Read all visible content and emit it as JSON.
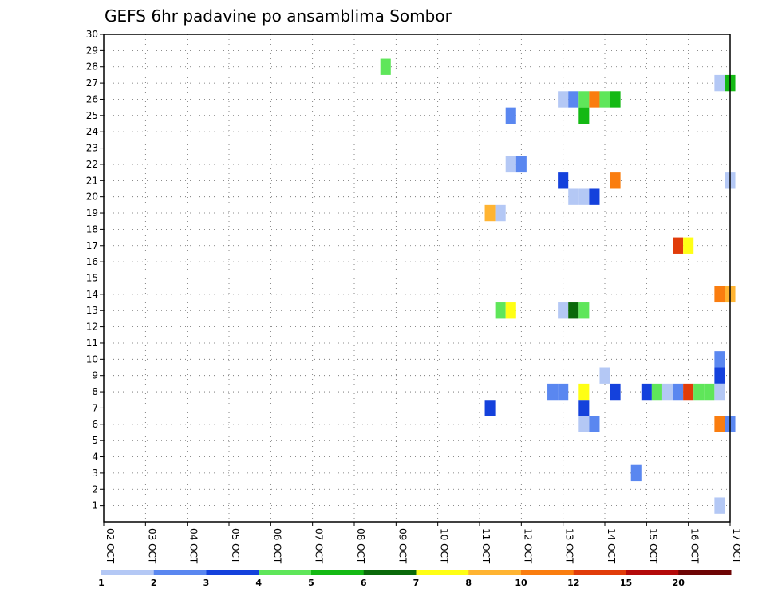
{
  "chart_data": {
    "type": "heatmap",
    "title": "GEFS 6hr padavine po ansamblima Sombor",
    "xlabel": "",
    "ylabel": "",
    "x_ticks": [
      "02 OCT",
      "03 OCT",
      "04 OCT",
      "05 OCT",
      "06 OCT",
      "07 OCT",
      "08 OCT",
      "09 OCT",
      "10 OCT",
      "11 OCT",
      "12 OCT",
      "13 OCT",
      "14 OCT",
      "15 OCT",
      "16 OCT",
      "17 OCT"
    ],
    "xlim": [
      "02 OCT 00Z",
      "17 OCT 00Z"
    ],
    "y_ticks": [
      1,
      2,
      3,
      4,
      5,
      6,
      7,
      8,
      9,
      10,
      11,
      12,
      13,
      14,
      15,
      16,
      17,
      18,
      19,
      20,
      21,
      22,
      23,
      24,
      25,
      26,
      27,
      28,
      29,
      30
    ],
    "ylim": [
      0,
      30
    ],
    "grid": true,
    "colorbar": {
      "labels": [
        "1",
        "2",
        "3",
        "4",
        "5",
        "6",
        "7",
        "8",
        "10",
        "12",
        "15",
        "20"
      ],
      "colors": [
        "#b4c8f5",
        "#5a87f0",
        "#1441dc",
        "#5fe65a",
        "#14b914",
        "#0a690a",
        "#ffff14",
        "#ffb432",
        "#fa7d0f",
        "#e13c0a",
        "#b40a0a",
        "#6e0505"
      ]
    },
    "cells": [
      {
        "time": "08 OCT 18Z",
        "member": 28,
        "color": "#5fe65a"
      },
      {
        "time": "16 OCT 18Z",
        "member": 27,
        "color": "#b4c8f5"
      },
      {
        "time": "17 OCT 00Z",
        "member": 27,
        "color": "#14b914"
      },
      {
        "time": "13 OCT 00Z",
        "member": 26,
        "color": "#b4c8f5"
      },
      {
        "time": "13 OCT 06Z",
        "member": 26,
        "color": "#5a87f0"
      },
      {
        "time": "13 OCT 12Z",
        "member": 26,
        "color": "#5fe65a"
      },
      {
        "time": "13 OCT 18Z",
        "member": 26,
        "color": "#fa7d0f"
      },
      {
        "time": "14 OCT 00Z",
        "member": 26,
        "color": "#5fe65a"
      },
      {
        "time": "14 OCT 06Z",
        "member": 26,
        "color": "#14b914"
      },
      {
        "time": "11 OCT 18Z",
        "member": 25,
        "color": "#5a87f0"
      },
      {
        "time": "13 OCT 12Z",
        "member": 25,
        "color": "#14b914"
      },
      {
        "time": "11 OCT 18Z",
        "member": 22,
        "color": "#b4c8f5"
      },
      {
        "time": "12 OCT 00Z",
        "member": 22,
        "color": "#5a87f0"
      },
      {
        "time": "13 OCT 00Z",
        "member": 21,
        "color": "#1441dc"
      },
      {
        "time": "14 OCT 06Z",
        "member": 21,
        "color": "#fa7d0f"
      },
      {
        "time": "17 OCT 00Z",
        "member": 21,
        "color": "#b4c8f5"
      },
      {
        "time": "13 OCT 06Z",
        "member": 20,
        "color": "#b4c8f5"
      },
      {
        "time": "13 OCT 12Z",
        "member": 20,
        "color": "#b4c8f5"
      },
      {
        "time": "13 OCT 18Z",
        "member": 20,
        "color": "#1441dc"
      },
      {
        "time": "11 OCT 06Z",
        "member": 19,
        "color": "#ffb432"
      },
      {
        "time": "11 OCT 12Z",
        "member": 19,
        "color": "#b4c8f5"
      },
      {
        "time": "15 OCT 18Z",
        "member": 17,
        "color": "#e13c0a"
      },
      {
        "time": "16 OCT 00Z",
        "member": 17,
        "color": "#ffff14"
      },
      {
        "time": "16 OCT 18Z",
        "member": 14,
        "color": "#fa7d0f"
      },
      {
        "time": "17 OCT 00Z",
        "member": 14,
        "color": "#ffb432"
      },
      {
        "time": "11 OCT 12Z",
        "member": 13,
        "color": "#5fe65a"
      },
      {
        "time": "11 OCT 18Z",
        "member": 13,
        "color": "#ffff14"
      },
      {
        "time": "13 OCT 00Z",
        "member": 13,
        "color": "#b4c8f5"
      },
      {
        "time": "13 OCT 06Z",
        "member": 13,
        "color": "#0a690a"
      },
      {
        "time": "13 OCT 12Z",
        "member": 13,
        "color": "#5fe65a"
      },
      {
        "time": "16 OCT 18Z",
        "member": 10,
        "color": "#5a87f0"
      },
      {
        "time": "14 OCT 00Z",
        "member": 9,
        "color": "#b4c8f5"
      },
      {
        "time": "16 OCT 18Z",
        "member": 9,
        "color": "#1441dc"
      },
      {
        "time": "12 OCT 18Z",
        "member": 8,
        "color": "#5a87f0"
      },
      {
        "time": "13 OCT 00Z",
        "member": 8,
        "color": "#5a87f0"
      },
      {
        "time": "13 OCT 12Z",
        "member": 8,
        "color": "#ffff14"
      },
      {
        "time": "14 OCT 06Z",
        "member": 8,
        "color": "#1441dc"
      },
      {
        "time": "15 OCT 00Z",
        "member": 8,
        "color": "#1441dc"
      },
      {
        "time": "15 OCT 06Z",
        "member": 8,
        "color": "#5fe65a"
      },
      {
        "time": "15 OCT 12Z",
        "member": 8,
        "color": "#b4c8f5"
      },
      {
        "time": "15 OCT 18Z",
        "member": 8,
        "color": "#5a87f0"
      },
      {
        "time": "16 OCT 00Z",
        "member": 8,
        "color": "#e13c0a"
      },
      {
        "time": "16 OCT 06Z",
        "member": 8,
        "color": "#5fe65a"
      },
      {
        "time": "16 OCT 12Z",
        "member": 8,
        "color": "#5fe65a"
      },
      {
        "time": "16 OCT 18Z",
        "member": 8,
        "color": "#b4c8f5"
      },
      {
        "time": "11 OCT 06Z",
        "member": 7,
        "color": "#1441dc"
      },
      {
        "time": "13 OCT 12Z",
        "member": 7,
        "color": "#1441dc"
      },
      {
        "time": "13 OCT 12Z",
        "member": 6,
        "color": "#b4c8f5"
      },
      {
        "time": "13 OCT 18Z",
        "member": 6,
        "color": "#5a87f0"
      },
      {
        "time": "16 OCT 18Z",
        "member": 6,
        "color": "#fa7d0f"
      },
      {
        "time": "17 OCT 00Z",
        "member": 6,
        "color": "#5a87f0"
      },
      {
        "time": "14 OCT 18Z",
        "member": 3,
        "color": "#5a87f0"
      },
      {
        "time": "16 OCT 18Z",
        "member": 1,
        "color": "#b4c8f5"
      }
    ]
  }
}
